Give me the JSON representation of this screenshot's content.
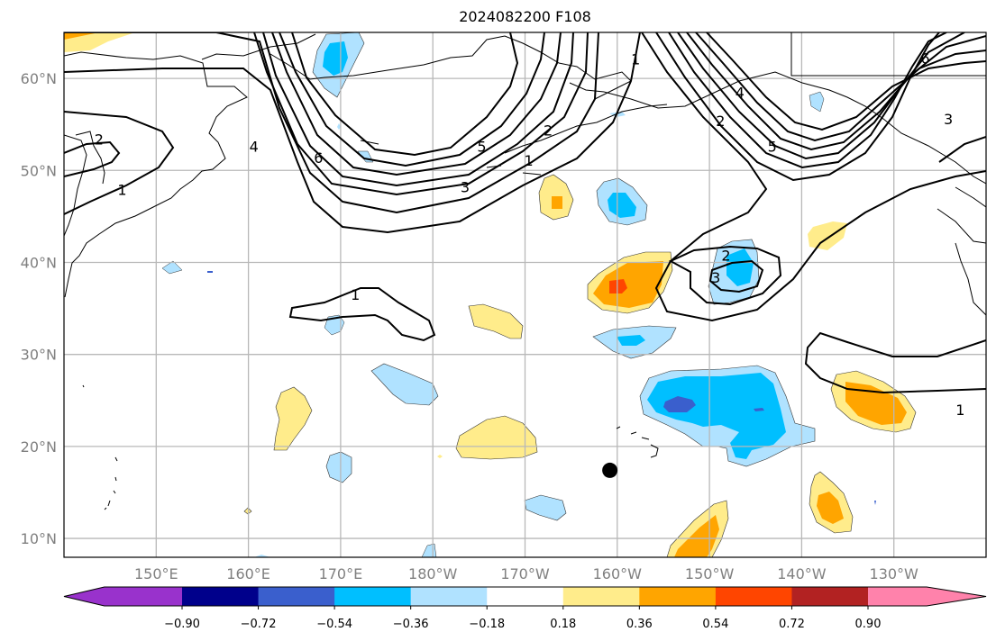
{
  "title": "2024082200 F108",
  "map": {
    "projection": "PlateCarree",
    "lon_range": [
      "140°E",
      "120°W"
    ],
    "lat_range": [
      "8°N",
      "65°N"
    ],
    "lat_labels": [
      "60°N",
      "50°N",
      "40°N",
      "30°N",
      "20°N",
      "10°N"
    ],
    "lon_labels": [
      "150°E",
      "160°E",
      "170°E",
      "180°W",
      "170°W",
      "160°W",
      "150°W",
      "140°W",
      "130°W"
    ],
    "marker": {
      "label": "storm-position",
      "lon": -160.8,
      "lat": 17.4,
      "color": "#000000"
    }
  },
  "contour_labels": [
    "1",
    "2",
    "3",
    "4",
    "5",
    "6"
  ],
  "contour_label_instances": [
    {
      "text": "2",
      "lon": 143.8,
      "lat": 53.4
    },
    {
      "text": "1",
      "lon": 146.3,
      "lat": 47.9
    },
    {
      "text": "4",
      "lon": 160.6,
      "lat": 52.6
    },
    {
      "text": "6",
      "lon": 167.6,
      "lat": 51.4
    },
    {
      "text": "5",
      "lon": -174.7,
      "lat": 52.6
    },
    {
      "text": "3",
      "lon": -176.5,
      "lat": 48.2
    },
    {
      "text": "1",
      "lon": -169.6,
      "lat": 51.1
    },
    {
      "text": "2",
      "lon": -167.5,
      "lat": 54.4
    },
    {
      "text": "1",
      "lon": -158.0,
      "lat": 62.1
    },
    {
      "text": "2",
      "lon": -148.8,
      "lat": 55.4
    },
    {
      "text": "4",
      "lon": -146.7,
      "lat": 58.5
    },
    {
      "text": "5",
      "lon": -143.2,
      "lat": 52.6
    },
    {
      "text": "6",
      "lon": -126.6,
      "lat": 62.2
    },
    {
      "text": "3",
      "lon": -124.1,
      "lat": 55.6
    },
    {
      "text": "1",
      "lon": 171.6,
      "lat": 36.5
    },
    {
      "text": "2",
      "lon": -148.2,
      "lat": 40.8
    },
    {
      "text": "3",
      "lon": -149.3,
      "lat": 38.4
    },
    {
      "text": "1",
      "lon": -122.8,
      "lat": 24.0
    }
  ],
  "colorbar": {
    "orientation": "horizontal",
    "extend": "both",
    "ticks": [
      "−0.90",
      "−0.72",
      "−0.54",
      "−0.36",
      "−0.18",
      "0.18",
      "0.36",
      "0.54",
      "0.72",
      "0.90"
    ],
    "boundaries": [
      -0.9,
      -0.72,
      -0.54,
      -0.36,
      -0.18,
      0.18,
      0.36,
      0.54,
      0.72,
      0.9
    ],
    "colors": [
      "#9932cc",
      "#00008b",
      "#3a5fcd",
      "#00bfff",
      "#b0e2ff",
      "#ffffff",
      "#ffec8b",
      "#ffa500",
      "#ff4500",
      "#b22222",
      "#ff82ab"
    ]
  }
}
